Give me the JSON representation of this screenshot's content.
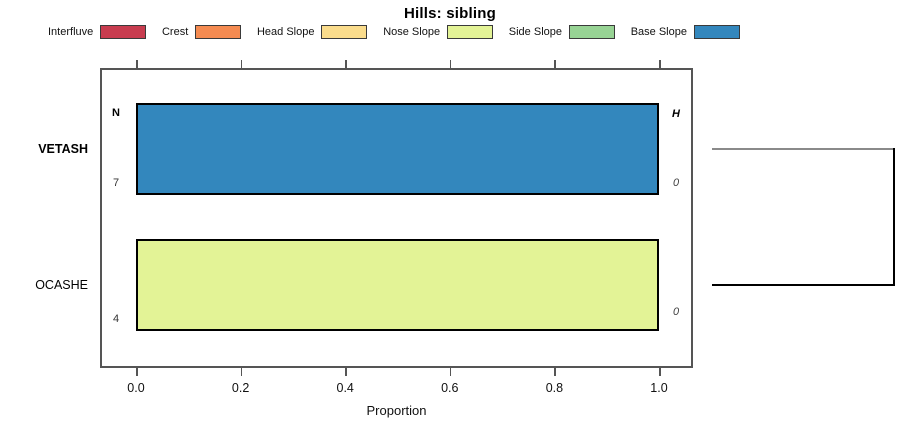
{
  "title": "Hills: sibling",
  "chart_data": {
    "type": "bar",
    "orientation": "horizontal",
    "stacked": true,
    "title": "Hills: sibling",
    "xlabel": "Proportion",
    "xlim": [
      0,
      1
    ],
    "xticks": [
      "0.0",
      "0.2",
      "0.4",
      "0.6",
      "0.8",
      "1.0"
    ],
    "grid": false,
    "legend_position": "top",
    "legend": [
      {
        "label": "Interfluve",
        "color": "#C83C4F"
      },
      {
        "label": "Crest",
        "color": "#F58B51"
      },
      {
        "label": "Head Slope",
        "color": "#FADC8C"
      },
      {
        "label": "Nose Slope",
        "color": "#E3F396"
      },
      {
        "label": "Side Slope",
        "color": "#97D394"
      },
      {
        "label": "Base Slope",
        "color": "#3387BD"
      }
    ],
    "column_headers": {
      "left": "N",
      "right": "H"
    },
    "rows": [
      {
        "label": "VETASH",
        "emphasis": true,
        "n": "7",
        "h": "0",
        "segments": [
          {
            "category": "Base Slope",
            "value": 1.0,
            "color": "#3387BD"
          }
        ]
      },
      {
        "label": "OCASHE",
        "emphasis": false,
        "n": "4",
        "h": "0",
        "segments": [
          {
            "category": "Nose Slope",
            "value": 1.0,
            "color": "#E3F396"
          }
        ]
      }
    ]
  },
  "dendrogram": {
    "leaves": [
      {
        "row": "VETASH",
        "highlighted": true
      },
      {
        "row": "OCASHE",
        "highlighted": false
      }
    ],
    "highlight_color": "#8A8A8A",
    "line_color": "#000000"
  },
  "colors": {
    "axis_and_box": "#555555",
    "bar_border": "#000000",
    "background": "#FFFFFF"
  }
}
